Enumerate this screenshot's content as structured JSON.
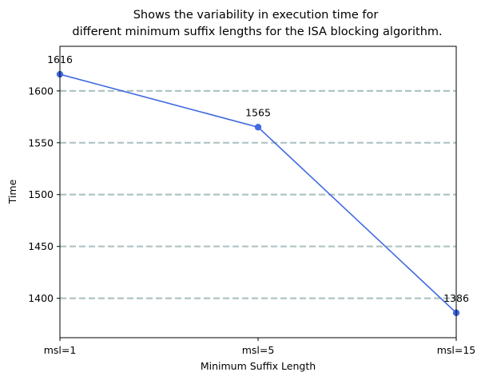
{
  "chart_data": {
    "type": "line",
    "title_line1": "Shows the variability in execution time for",
    "title_line2": "different minimum suffix lengths for the ISA blocking algorithm.",
    "xlabel": "Minimum Suffix Length",
    "ylabel": "Time",
    "categories": [
      "msl=1",
      "msl=5",
      "msl=15"
    ],
    "series": [
      {
        "values": [
          1616,
          1565,
          1386
        ],
        "color": "#4169e1"
      }
    ],
    "data_labels": [
      "1616",
      "1565",
      "1386"
    ],
    "y_ticks": [
      1400,
      1450,
      1500,
      1550,
      1600
    ],
    "ylim": [
      1362,
      1643
    ],
    "grid": "horizontal-dashed",
    "grid_color": "#b0c4c4"
  }
}
